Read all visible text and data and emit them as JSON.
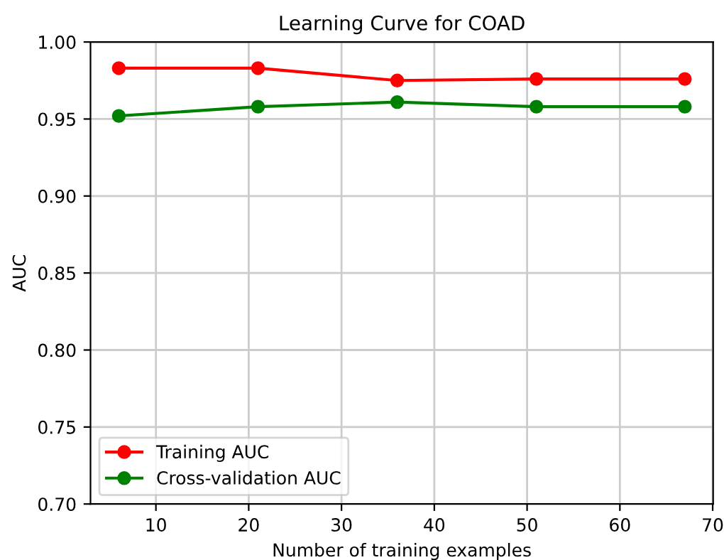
{
  "chart_data": {
    "type": "line",
    "title": "Learning Curve for COAD",
    "xlabel": "Number of training examples",
    "ylabel": "AUC",
    "x": [
      6,
      21,
      36,
      51,
      67
    ],
    "series": [
      {
        "name": "Training AUC",
        "color": "#ff0000",
        "values": [
          0.983,
          0.983,
          0.975,
          0.976,
          0.976
        ]
      },
      {
        "name": "Cross-validation AUC",
        "color": "#008000",
        "values": [
          0.952,
          0.958,
          0.961,
          0.958,
          0.958
        ]
      }
    ],
    "xlim": [
      2.95,
      70.05
    ],
    "xticks": [
      10,
      20,
      30,
      40,
      50,
      60,
      70
    ],
    "ylim": [
      0.7,
      1.0
    ],
    "yticks": [
      {
        "value": 0.7,
        "label": "0.70"
      },
      {
        "value": 0.75,
        "label": "0.75"
      },
      {
        "value": 0.8,
        "label": "0.80"
      },
      {
        "value": 0.85,
        "label": "0.85"
      },
      {
        "value": 0.9,
        "label": "0.90"
      },
      {
        "value": 0.95,
        "label": "0.95"
      },
      {
        "value": 1.0,
        "label": "1.00"
      }
    ],
    "grid": true,
    "legend": "bottom left",
    "marker": "circle",
    "line_style": "solid"
  }
}
